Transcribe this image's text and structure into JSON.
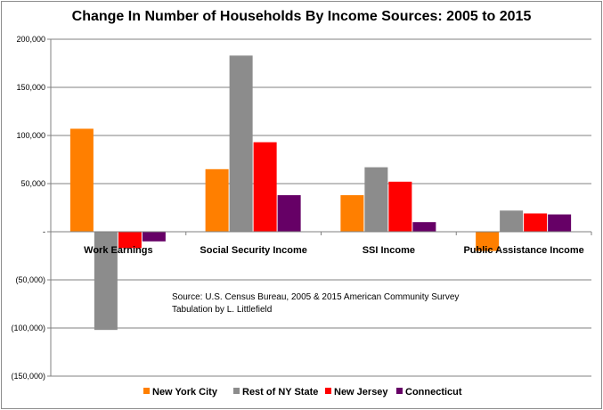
{
  "chart_data": {
    "type": "bar",
    "title": "Change In Number of Households By Income Sources:  2005 to 2015",
    "categories": [
      "Work Earnings",
      "Social Security Income",
      "SSI Income",
      "Public Assistance Income"
    ],
    "series": [
      {
        "name": "New York City",
        "color": "#ff7f00",
        "values": [
          107000,
          65000,
          38000,
          -20000
        ]
      },
      {
        "name": "Rest of NY State",
        "color": "#8c8c8c",
        "values": [
          -102000,
          183000,
          67000,
          22000
        ]
      },
      {
        "name": "New Jersey",
        "color": "#ff0000",
        "values": [
          -17000,
          93000,
          52000,
          19000
        ]
      },
      {
        "name": "Connecticut",
        "color": "#660066",
        "values": [
          -10000,
          38000,
          10000,
          18000
        ]
      }
    ],
    "y_ticks": [
      {
        "value": 200000,
        "label": "200,000"
      },
      {
        "value": 150000,
        "label": "150,000"
      },
      {
        "value": 100000,
        "label": "100,000"
      },
      {
        "value": 50000,
        "label": "50,000"
      },
      {
        "value": 0,
        "label": "-"
      },
      {
        "value": -50000,
        "label": "(50,000)"
      },
      {
        "value": -100000,
        "label": "(100,000)"
      },
      {
        "value": -150000,
        "label": "(150,000)"
      }
    ],
    "ylim": [
      -150000,
      200000
    ],
    "grid": true,
    "legend": "bottom",
    "annotation": [
      "Source:  U.S. Census Bureau, 2005 & 2015 American Community Survey",
      "Tabulation by L. Littlefield"
    ]
  }
}
